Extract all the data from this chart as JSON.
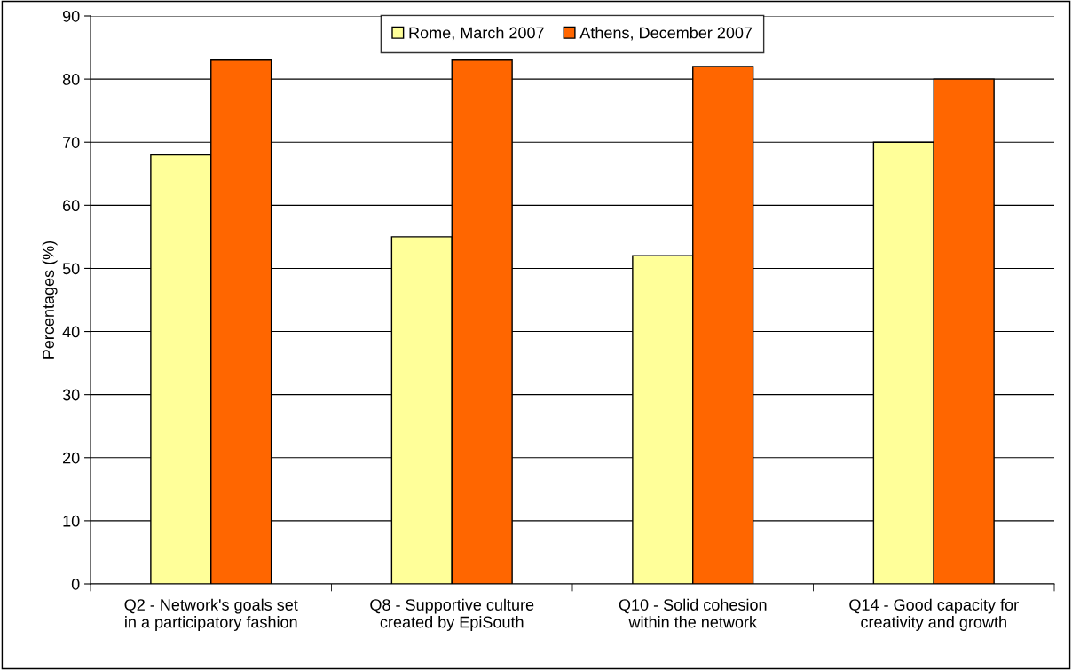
{
  "chart_data": {
    "type": "bar",
    "categories": [
      "Q2 - Network's goals set\nin a participatory fashion",
      "Q8 - Supportive culture\ncreated by EpiSouth",
      "Q10 - Solid cohesion\nwithin the network",
      "Q14 - Good capacity for\ncreativity and growth"
    ],
    "series": [
      {
        "name": "Rome, March 2007",
        "color": "#ffff99",
        "values": [
          68,
          55,
          52,
          70
        ]
      },
      {
        "name": "Athens, December 2007",
        "color": "#ff6600",
        "values": [
          83,
          83,
          82,
          80
        ]
      }
    ],
    "ylabel": "Percentages (%)",
    "ylim": [
      0,
      90
    ],
    "yticks": [
      0,
      10,
      20,
      30,
      40,
      50,
      60,
      70,
      80,
      90
    ],
    "grid": "y",
    "legend": "top"
  }
}
